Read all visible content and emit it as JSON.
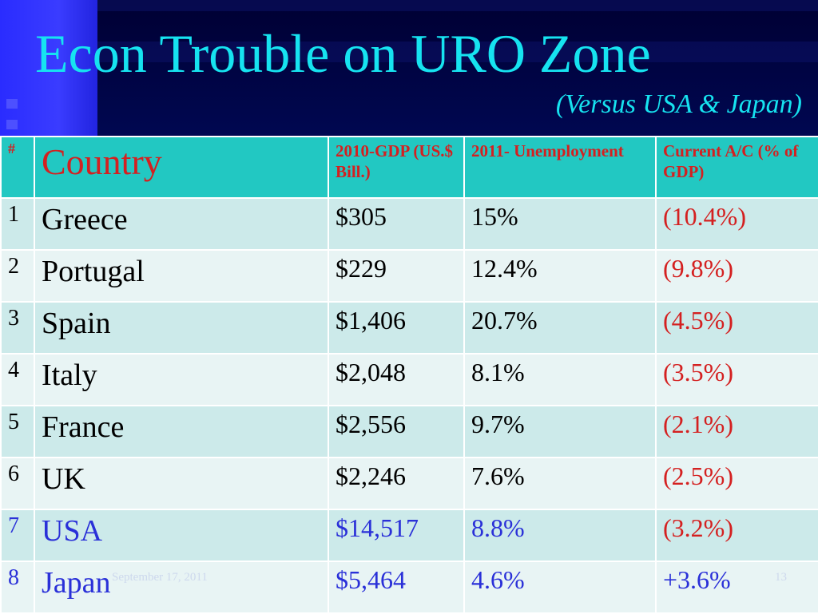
{
  "slide": {
    "title": "Econ Trouble on URO Zone",
    "subtitle": "(Versus USA & Japan)",
    "footer_date": "September 17, 2011",
    "page_number": "13"
  },
  "table": {
    "headers": {
      "num": "#",
      "country": "Country",
      "gdp": "2010-GDP (US.$ Bill.)",
      "unemployment": "2011- Unemployment",
      "current_account": "Current A/C (% of GDP)"
    },
    "rows": [
      {
        "num": "1",
        "country": "Greece",
        "gdp": "$305",
        "unemployment": "15%",
        "current_account": "(10.4%)"
      },
      {
        "num": "2",
        "country": "Portugal",
        "gdp": "$229",
        "unemployment": "12.4%",
        "current_account": "(9.8%)"
      },
      {
        "num": "3",
        "country": "Spain",
        "gdp": "$1,406",
        "unemployment": "20.7%",
        "current_account": "(4.5%)"
      },
      {
        "num": "4",
        "country": "Italy",
        "gdp": "$2,048",
        "unemployment": "8.1%",
        "current_account": "(3.5%)"
      },
      {
        "num": "5",
        "country": "France",
        "gdp": "$2,556",
        "unemployment": "9.7%",
        "current_account": "(2.1%)"
      },
      {
        "num": "6",
        "country": "UK",
        "gdp": "$2,246",
        "unemployment": "7.6%",
        "current_account": "(2.5%)"
      },
      {
        "num": "7",
        "country": "USA",
        "gdp": "$14,517",
        "unemployment": "8.8%",
        "current_account": "(3.2%)"
      },
      {
        "num": "8",
        "country": "Japan",
        "gdp": "$5,464",
        "unemployment": "4.6%",
        "current_account": "+3.6%"
      }
    ]
  },
  "colors": {
    "title": "#16e3f0",
    "header_bg": "#22c8c2",
    "header_text": "#d42020",
    "negative_value": "#d42020",
    "highlight_row_text": "#2a30d8",
    "background": "#000a5c"
  }
}
